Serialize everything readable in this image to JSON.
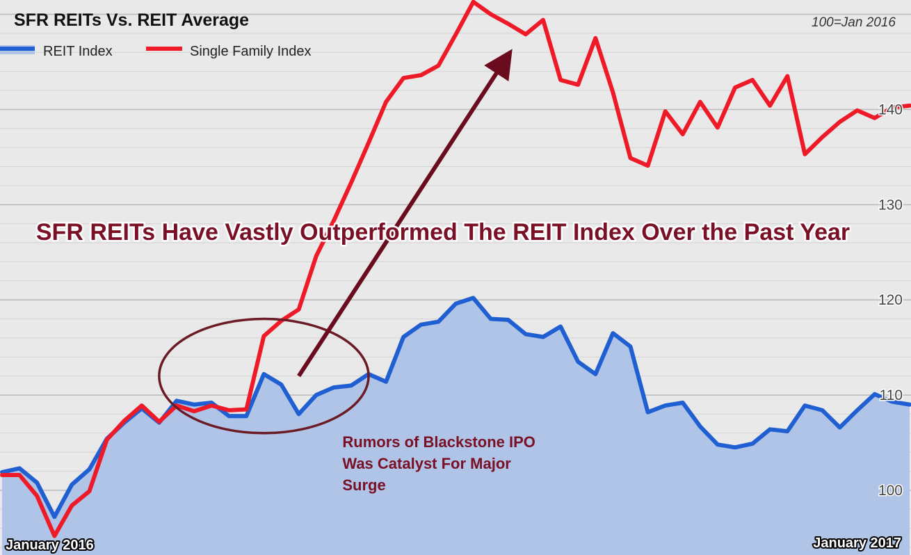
{
  "chart_data": {
    "type": "line",
    "title": "SFR REITs Vs. REIT Average",
    "subtitle": "100=Jan 2016",
    "x_start_label": "January 2016",
    "x_end_label": "January 2017",
    "y_tick_labels": [
      "100",
      "110",
      "120",
      "130",
      "140"
    ],
    "y_ticks": [
      100,
      110,
      120,
      130,
      140
    ],
    "ylim": [
      93.2,
      151.5
    ],
    "grid": true,
    "legend_position": "top-left",
    "x_count": 53,
    "series": [
      {
        "name": "REIT Index",
        "color": "#1f5fd1",
        "fill": "#afc4e6",
        "values": [
          101.9,
          102.3,
          100.8,
          97.2,
          100.6,
          102.2,
          105.4,
          107.1,
          108.6,
          107.1,
          109.4,
          109.0,
          109.2,
          107.8,
          107.8,
          112.2,
          111.1,
          108.0,
          110.0,
          110.8,
          111.0,
          112.2,
          111.4,
          116.1,
          117.4,
          117.7,
          119.6,
          120.2,
          118.0,
          117.9,
          116.4,
          116.1,
          117.2,
          113.5,
          112.2,
          116.5,
          115.1,
          108.2,
          108.9,
          109.2,
          106.7,
          104.8,
          104.5,
          104.9,
          106.4,
          106.2,
          108.9,
          108.4,
          106.6,
          108.4,
          110.1,
          109.3,
          109.0
        ]
      },
      {
        "name": "Single Family Index",
        "color": "#ee1a28",
        "values": [
          101.6,
          101.6,
          99.4,
          95.2,
          98.4,
          99.9,
          105.3,
          107.3,
          108.9,
          107.2,
          108.9,
          108.3,
          108.9,
          108.4,
          108.5,
          116.2,
          117.8,
          119.0,
          124.6,
          128.3,
          132.3,
          136.5,
          140.8,
          143.3,
          143.6,
          144.6,
          147.9,
          151.3,
          150.0,
          149.0,
          147.9,
          149.4,
          143.1,
          142.6,
          147.5,
          141.8,
          134.9,
          134.1,
          139.8,
          137.4,
          140.8,
          138.1,
          142.3,
          143.1,
          140.4,
          143.5,
          135.3,
          137.1,
          138.7,
          139.9,
          139.1,
          140.2,
          140.4
        ]
      }
    ],
    "annotations": [
      {
        "type": "arrow",
        "x": [
          17,
          29
        ],
        "y": [
          112.0,
          145.7
        ],
        "color": "#6b0c1e"
      },
      {
        "type": "ellipse",
        "x_range": [
          9,
          21
        ],
        "y_range": [
          106.0,
          118.0
        ],
        "color": "#6b1b24"
      },
      {
        "type": "text",
        "x": 19.5,
        "y": 106.0,
        "lines": [
          "Rumors of Blackstone IPO",
          "Was Catalyst For Major",
          "Surge"
        ],
        "color": "#7a1026"
      },
      {
        "type": "headline",
        "text": "SFR REITs Have Vastly Outperformed The REIT Index Over the Past Year",
        "color": "#7a1026"
      }
    ]
  }
}
